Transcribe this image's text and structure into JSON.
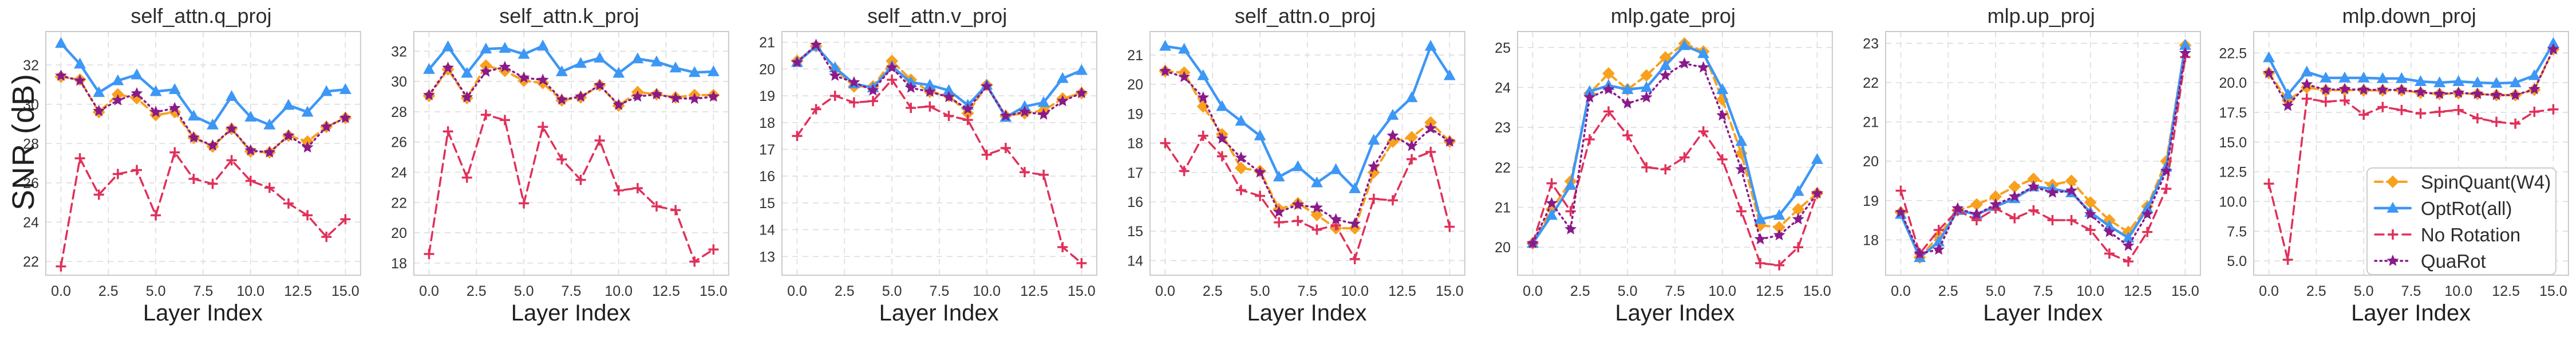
{
  "figure": {
    "ylabel": "SNR (dB)",
    "xlabel": "Layer Index",
    "x": [
      0,
      1,
      2,
      3,
      4,
      5,
      6,
      7,
      8,
      9,
      10,
      11,
      12,
      13,
      14,
      15
    ],
    "xlim": [
      -0.8,
      15.8
    ],
    "x_ticks": [
      {
        "v": 0,
        "label": "0.0"
      },
      {
        "v": 2.5,
        "label": "2.5"
      },
      {
        "v": 5,
        "label": "5.0"
      },
      {
        "v": 7.5,
        "label": "7.5"
      },
      {
        "v": 10,
        "label": "10.0"
      },
      {
        "v": 12.5,
        "label": "12.5"
      },
      {
        "v": 15,
        "label": "15.0"
      }
    ],
    "grid_color": "#dcdcdc",
    "spine_color": "#cbcbcb",
    "tick_color": "#333333"
  },
  "series_meta": [
    {
      "name": "SpinQuant(W4)",
      "color": "#F7A11F",
      "dash": "13 8",
      "width": 4,
      "marker": "diamond",
      "marker_size": 11
    },
    {
      "name": "OptRot(all)",
      "color": "#3D97F5",
      "dash": "none",
      "width": 4.5,
      "marker": "triangle",
      "marker_size": 11
    },
    {
      "name": "No Rotation",
      "color": "#E0305A",
      "dash": "15 9",
      "width": 3.5,
      "marker": "plus",
      "marker_size": 9
    },
    {
      "name": "QuaRot",
      "color": "#8A1A8A",
      "dash": "2.5 6.5",
      "width": 3.5,
      "marker": "star",
      "marker_size": 11
    }
  ],
  "legend": {
    "entries": [
      "SpinQuant(W4)",
      "OptRot(all)",
      "No Rotation",
      "QuaRot"
    ],
    "location": "lower right of mlp.down_proj panel"
  },
  "chart_data": [
    {
      "type": "line",
      "title": "self_attn.q_proj",
      "ylim": [
        21.3,
        33.7
      ],
      "yticks": [
        {
          "v": 22,
          "label": "22"
        },
        {
          "v": 24,
          "label": "24"
        },
        {
          "v": 26,
          "label": "26"
        },
        {
          "v": 28,
          "label": "28"
        },
        {
          "v": 30,
          "label": "30"
        },
        {
          "v": 32,
          "label": "32"
        }
      ],
      "series": [
        {
          "name": "SpinQuant(W4)",
          "values": [
            31.4,
            31.25,
            29.6,
            30.5,
            30.3,
            29.45,
            29.6,
            28.3,
            27.85,
            28.75,
            27.6,
            27.55,
            28.4,
            28.1,
            28.85,
            29.3
          ]
        },
        {
          "name": "OptRot(all)",
          "values": [
            33.1,
            32.05,
            30.6,
            31.2,
            31.5,
            30.65,
            30.75,
            29.4,
            28.95,
            30.4,
            29.35,
            28.95,
            29.95,
            29.6,
            30.65,
            30.75
          ]
        },
        {
          "name": "No Rotation",
          "values": [
            21.75,
            27.25,
            25.4,
            26.45,
            26.65,
            24.35,
            27.55,
            26.2,
            25.95,
            27.15,
            26.1,
            25.75,
            24.95,
            24.35,
            23.25,
            24.15
          ]
        },
        {
          "name": "QuaRot",
          "values": [
            31.45,
            31.2,
            29.65,
            30.2,
            30.55,
            29.6,
            29.8,
            28.3,
            27.9,
            28.75,
            27.65,
            27.55,
            28.4,
            27.8,
            28.85,
            29.3
          ]
        }
      ]
    },
    {
      "type": "line",
      "title": "self_attn.k_proj",
      "ylim": [
        17.2,
        33.3
      ],
      "yticks": [
        {
          "v": 18,
          "label": "18"
        },
        {
          "v": 20,
          "label": "20"
        },
        {
          "v": 22,
          "label": "22"
        },
        {
          "v": 24,
          "label": "24"
        },
        {
          "v": 26,
          "label": "26"
        },
        {
          "v": 28,
          "label": "28"
        },
        {
          "v": 30,
          "label": "30"
        },
        {
          "v": 32,
          "label": "32"
        }
      ],
      "series": [
        {
          "name": "SpinQuant(W4)",
          "values": [
            29.05,
            30.8,
            28.9,
            31.05,
            30.7,
            30.05,
            29.9,
            28.75,
            28.95,
            29.75,
            28.4,
            29.3,
            29.15,
            28.95,
            29.1,
            29.1
          ]
        },
        {
          "name": "OptRot(all)",
          "values": [
            30.8,
            32.3,
            30.55,
            32.15,
            32.2,
            31.8,
            32.35,
            30.65,
            31.2,
            31.55,
            30.55,
            31.5,
            31.3,
            30.9,
            30.6,
            30.65
          ]
        },
        {
          "name": "No Rotation",
          "values": [
            18.6,
            26.7,
            23.65,
            27.8,
            27.45,
            21.95,
            27.0,
            24.85,
            23.5,
            26.1,
            22.8,
            22.95,
            21.75,
            21.5,
            18.1,
            18.9
          ]
        },
        {
          "name": "QuaRot",
          "values": [
            29.1,
            30.9,
            28.95,
            30.65,
            30.95,
            30.25,
            30.1,
            28.8,
            29.0,
            29.75,
            28.45,
            29.0,
            29.15,
            28.9,
            28.85,
            29.0
          ]
        }
      ]
    },
    {
      "type": "line",
      "title": "self_attn.v_proj",
      "ylim": [
        12.3,
        21.4
      ],
      "yticks": [
        {
          "v": 13,
          "label": "13"
        },
        {
          "v": 14,
          "label": "14"
        },
        {
          "v": 15,
          "label": "15"
        },
        {
          "v": 16,
          "label": "16"
        },
        {
          "v": 17,
          "label": "17"
        },
        {
          "v": 18,
          "label": "18"
        },
        {
          "v": 19,
          "label": "19"
        },
        {
          "v": 20,
          "label": "20"
        },
        {
          "v": 21,
          "label": "21"
        }
      ],
      "series": [
        {
          "name": "SpinQuant(W4)",
          "values": [
            20.3,
            20.85,
            20.0,
            19.35,
            19.35,
            20.3,
            19.6,
            19.15,
            19.0,
            18.35,
            19.4,
            18.25,
            18.35,
            18.45,
            18.9,
            19.1
          ]
        },
        {
          "name": "OptRot(all)",
          "values": [
            20.25,
            20.85,
            20.05,
            19.45,
            19.3,
            20.1,
            19.5,
            19.4,
            19.2,
            18.65,
            19.4,
            18.2,
            18.6,
            18.75,
            19.65,
            19.95
          ]
        },
        {
          "name": "No Rotation",
          "values": [
            17.5,
            18.5,
            19.0,
            18.75,
            18.8,
            19.6,
            18.55,
            18.6,
            18.25,
            18.1,
            16.8,
            17.05,
            16.15,
            16.05,
            13.35,
            12.75
          ]
        },
        {
          "name": "QuaRot",
          "values": [
            20.25,
            20.9,
            19.75,
            19.5,
            19.2,
            20.05,
            19.3,
            19.15,
            18.95,
            18.5,
            19.35,
            18.25,
            18.4,
            18.3,
            18.8,
            19.1
          ]
        }
      ]
    },
    {
      "type": "line",
      "title": "self_attn.o_proj",
      "ylim": [
        13.5,
        21.8
      ],
      "yticks": [
        {
          "v": 14,
          "label": "14"
        },
        {
          "v": 15,
          "label": "15"
        },
        {
          "v": 16,
          "label": "16"
        },
        {
          "v": 17,
          "label": "17"
        },
        {
          "v": 18,
          "label": "18"
        },
        {
          "v": 19,
          "label": "19"
        },
        {
          "v": 20,
          "label": "20"
        },
        {
          "v": 21,
          "label": "21"
        }
      ],
      "series": [
        {
          "name": "SpinQuant(W4)",
          "values": [
            20.45,
            20.4,
            19.25,
            18.3,
            17.15,
            17.05,
            15.75,
            15.95,
            15.55,
            15.1,
            15.1,
            17.0,
            18.05,
            18.2,
            18.7,
            18.05
          ]
        },
        {
          "name": "OptRot(all)",
          "values": [
            21.3,
            21.2,
            20.3,
            19.25,
            18.75,
            18.25,
            16.85,
            17.2,
            16.65,
            17.1,
            16.45,
            18.1,
            18.95,
            19.55,
            21.3,
            20.3
          ]
        },
        {
          "name": "No Rotation",
          "values": [
            18.0,
            17.05,
            18.25,
            17.55,
            16.4,
            16.2,
            15.3,
            15.35,
            15.05,
            15.2,
            14.05,
            16.1,
            16.05,
            17.45,
            17.7,
            15.15
          ]
        },
        {
          "name": "QuaRot",
          "values": [
            20.45,
            20.25,
            19.55,
            18.15,
            17.5,
            17.0,
            15.65,
            15.9,
            15.8,
            15.4,
            15.25,
            17.2,
            18.25,
            17.9,
            18.5,
            18.05
          ]
        }
      ]
    },
    {
      "type": "line",
      "title": "mlp.gate_proj",
      "ylim": [
        19.3,
        25.4
      ],
      "yticks": [
        {
          "v": 20,
          "label": "20"
        },
        {
          "v": 21,
          "label": "21"
        },
        {
          "v": 22,
          "label": "22"
        },
        {
          "v": 23,
          "label": "23"
        },
        {
          "v": 24,
          "label": "24"
        },
        {
          "v": 25,
          "label": "25"
        }
      ],
      "series": [
        {
          "name": "SpinQuant(W4)",
          "values": [
            20.1,
            20.95,
            21.65,
            23.85,
            24.35,
            23.95,
            24.3,
            24.75,
            25.1,
            24.9,
            23.7,
            22.35,
            20.55,
            20.5,
            20.95,
            21.35
          ]
        },
        {
          "name": "OptRot(all)",
          "values": [
            20.1,
            20.8,
            21.55,
            23.9,
            24.05,
            23.95,
            24.0,
            24.55,
            25.05,
            24.85,
            23.95,
            22.65,
            20.7,
            20.8,
            21.4,
            22.2
          ]
        },
        {
          "name": "No Rotation",
          "values": [
            20.1,
            21.6,
            20.9,
            22.7,
            23.4,
            22.8,
            22.0,
            21.95,
            22.25,
            22.9,
            22.2,
            20.9,
            19.6,
            19.55,
            20.0,
            21.35
          ]
        },
        {
          "name": "QuaRot",
          "values": [
            20.1,
            21.1,
            20.45,
            23.75,
            23.95,
            23.6,
            23.75,
            24.3,
            24.6,
            24.5,
            23.3,
            21.95,
            20.2,
            20.3,
            20.7,
            21.35
          ]
        }
      ]
    },
    {
      "type": "line",
      "title": "mlp.up_proj",
      "ylim": [
        17.1,
        23.3
      ],
      "yticks": [
        {
          "v": 18,
          "label": "18"
        },
        {
          "v": 19,
          "label": "19"
        },
        {
          "v": 20,
          "label": "20"
        },
        {
          "v": 21,
          "label": "21"
        },
        {
          "v": 22,
          "label": "22"
        },
        {
          "v": 23,
          "label": "23"
        }
      ],
      "series": [
        {
          "name": "SpinQuant(W4)",
          "values": [
            18.7,
            17.55,
            18.1,
            18.75,
            18.9,
            19.1,
            19.35,
            19.55,
            19.4,
            19.5,
            18.95,
            18.5,
            18.2,
            18.85,
            20.0,
            22.95
          ]
        },
        {
          "name": "OptRot(all)",
          "values": [
            18.65,
            17.55,
            17.95,
            18.75,
            18.65,
            18.85,
            19.05,
            19.35,
            19.3,
            19.2,
            18.7,
            18.35,
            18.05,
            18.8,
            19.85,
            22.95
          ]
        },
        {
          "name": "No Rotation",
          "values": [
            19.25,
            17.65,
            18.25,
            18.75,
            18.5,
            18.8,
            18.55,
            18.75,
            18.5,
            18.5,
            18.25,
            17.65,
            17.45,
            18.2,
            19.3,
            22.65
          ]
        },
        {
          "name": "QuaRot",
          "values": [
            18.7,
            17.65,
            17.75,
            18.8,
            18.65,
            18.9,
            19.1,
            19.35,
            19.2,
            19.25,
            18.65,
            18.2,
            17.85,
            18.65,
            19.75,
            22.75
          ]
        }
      ]
    },
    {
      "type": "line",
      "title": "mlp.down_proj",
      "ylim": [
        3.8,
        24.3
      ],
      "legend": true,
      "yticks": [
        {
          "v": 5,
          "label": "5.0"
        },
        {
          "v": 7.5,
          "label": "7.5"
        },
        {
          "v": 10,
          "label": "10.0"
        },
        {
          "v": 12.5,
          "label": "12.5"
        },
        {
          "v": 15,
          "label": "15.0"
        },
        {
          "v": 17.5,
          "label": "17.5"
        },
        {
          "v": 20,
          "label": "20.0"
        },
        {
          "v": 22.5,
          "label": "22.5"
        }
      ],
      "series": [
        {
          "name": "SpinQuant(W4)",
          "values": [
            20.8,
            18.5,
            19.6,
            19.35,
            19.4,
            19.35,
            19.35,
            19.35,
            19.15,
            19.05,
            19.1,
            19.05,
            18.95,
            18.95,
            19.4,
            22.8
          ]
        },
        {
          "name": "OptRot(all)",
          "values": [
            22.1,
            19.0,
            20.9,
            20.4,
            20.4,
            20.4,
            20.35,
            20.35,
            20.1,
            20.0,
            20.1,
            20.0,
            19.95,
            20.0,
            20.6,
            23.3
          ]
        },
        {
          "name": "No Rotation",
          "values": [
            11.5,
            5.1,
            18.65,
            18.4,
            18.5,
            17.3,
            17.95,
            17.7,
            17.4,
            17.55,
            17.7,
            17.0,
            16.7,
            16.55,
            17.55,
            17.75
          ]
        },
        {
          "name": "QuaRot",
          "values": [
            20.8,
            18.05,
            19.85,
            19.4,
            19.45,
            19.4,
            19.4,
            19.4,
            19.2,
            19.05,
            19.15,
            19.05,
            18.95,
            18.95,
            19.45,
            22.8
          ]
        }
      ]
    }
  ]
}
